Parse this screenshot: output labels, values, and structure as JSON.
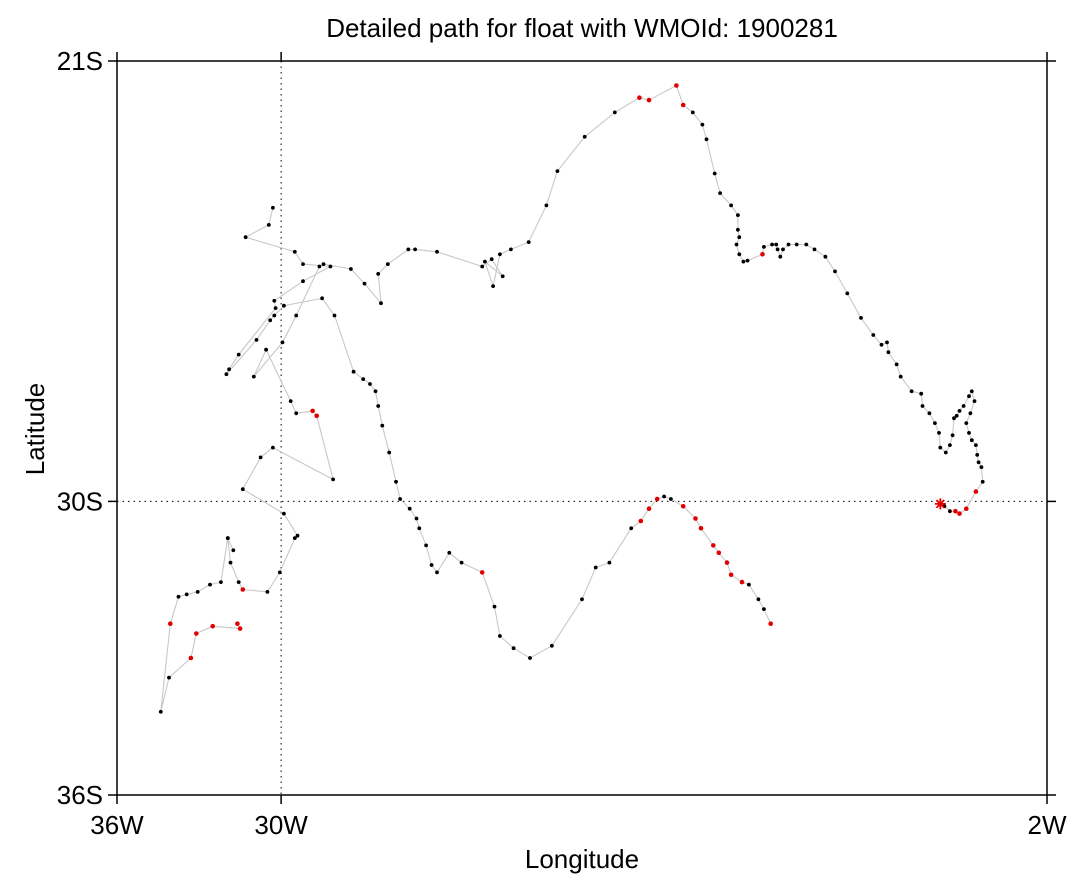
{
  "chart_data": {
    "type": "scatter",
    "title": "Detailed path for float with WMOId: 1900281",
    "xlabel": "Longitude",
    "ylabel": "Latitude",
    "xlim": [
      -36,
      -2
    ],
    "ylim": [
      -36,
      -21
    ],
    "x_ticks": [
      {
        "value": -36,
        "label": "36W"
      },
      {
        "value": -30,
        "label": "30W"
      },
      {
        "value": -2,
        "label": "2W"
      }
    ],
    "y_ticks": [
      {
        "value": -21,
        "label": "21S"
      },
      {
        "value": -30,
        "label": "30S"
      },
      {
        "value": -36,
        "label": "36S"
      }
    ],
    "grid": "dotted lines at 30W and 30S",
    "colors": {
      "path": "#c8c8c8",
      "normal": "#000000",
      "flagged": "#e00000",
      "frame": "#000000"
    },
    "start_marker": {
      "shape": "asterisk",
      "lon": -5.9,
      "lat": -30.05,
      "color": "#e00000"
    },
    "series": [
      {
        "points": [
          [
            -5.9,
            -30.05,
            0
          ],
          [
            -5.75,
            -30.1,
            0
          ],
          [
            -5.55,
            -30.2,
            0
          ],
          [
            -5.35,
            -30.2,
            1
          ],
          [
            -5.2,
            -30.25,
            1
          ],
          [
            -4.95,
            -30.15,
            1
          ],
          [
            -4.6,
            -29.8,
            1
          ],
          [
            -4.35,
            -29.6,
            0
          ],
          [
            -4.4,
            -29.3,
            0
          ],
          [
            -4.5,
            -29.2,
            0
          ],
          [
            -4.55,
            -29.05,
            0
          ],
          [
            -4.6,
            -28.85,
            0
          ],
          [
            -4.75,
            -28.75,
            0
          ],
          [
            -4.85,
            -28.6,
            0
          ],
          [
            -4.95,
            -28.4,
            0
          ],
          [
            -4.8,
            -28.2,
            0
          ],
          [
            -4.65,
            -27.95,
            0
          ],
          [
            -4.75,
            -27.75,
            0
          ],
          [
            -4.85,
            -27.85,
            0
          ],
          [
            -5.05,
            -28.05,
            0
          ],
          [
            -5.2,
            -28.15,
            0
          ],
          [
            -5.3,
            -28.25,
            0
          ],
          [
            -5.4,
            -28.3,
            0
          ],
          [
            -5.45,
            -28.65,
            0
          ],
          [
            -5.55,
            -28.85,
            0
          ],
          [
            -5.7,
            -29.0,
            0
          ],
          [
            -5.9,
            -28.9,
            0
          ],
          [
            -5.95,
            -28.6,
            0
          ],
          [
            -6.1,
            -28.4,
            0
          ],
          [
            -6.3,
            -28.2,
            0
          ],
          [
            -6.55,
            -28.05,
            0
          ],
          [
            -6.6,
            -27.8,
            0
          ],
          [
            -6.95,
            -27.75,
            0
          ],
          [
            -7.35,
            -27.45,
            0
          ],
          [
            -7.5,
            -27.2,
            0
          ],
          [
            -7.8,
            -26.95,
            0
          ],
          [
            -7.85,
            -26.75,
            0
          ],
          [
            -8.05,
            -26.8,
            0
          ],
          [
            -8.35,
            -26.6,
            0
          ],
          [
            -8.8,
            -26.25,
            0
          ],
          [
            -9.3,
            -25.75,
            0
          ],
          [
            -9.75,
            -25.3,
            0
          ],
          [
            -10.1,
            -25.0,
            0
          ],
          [
            -10.5,
            -24.85,
            0
          ],
          [
            -10.8,
            -24.75,
            0
          ],
          [
            -11.15,
            -24.75,
            0
          ],
          [
            -11.45,
            -24.75,
            0
          ],
          [
            -11.65,
            -24.85,
            0
          ],
          [
            -11.75,
            -25.0,
            0
          ],
          [
            -11.85,
            -24.85,
            0
          ],
          [
            -11.9,
            -24.75,
            0
          ],
          [
            -12.05,
            -24.75,
            0
          ],
          [
            -12.35,
            -24.8,
            0
          ],
          [
            -12.4,
            -24.95,
            1
          ],
          [
            -12.95,
            -25.08,
            0
          ],
          [
            -13.1,
            -25.1,
            0
          ],
          [
            -13.25,
            -24.95,
            0
          ],
          [
            -13.35,
            -24.75,
            0
          ],
          [
            -13.25,
            -24.6,
            0
          ],
          [
            -13.3,
            -24.45,
            0
          ],
          [
            -13.3,
            -24.15,
            0
          ],
          [
            -13.55,
            -23.95,
            0
          ],
          [
            -13.95,
            -23.7,
            0
          ],
          [
            -14.15,
            -23.3,
            0
          ],
          [
            -14.45,
            -22.6,
            0
          ],
          [
            -14.6,
            -22.3,
            0
          ],
          [
            -14.95,
            -22.05,
            0
          ],
          [
            -15.3,
            -21.9,
            1
          ],
          [
            -15.55,
            -21.5,
            1
          ],
          [
            -16.55,
            -21.8,
            1
          ],
          [
            -16.9,
            -21.75,
            1
          ],
          [
            -17.8,
            -22.05,
            0
          ],
          [
            -18.9,
            -22.55,
            0
          ],
          [
            -19.9,
            -23.25,
            0
          ],
          [
            -20.3,
            -23.95,
            0
          ],
          [
            -20.95,
            -24.7,
            0
          ],
          [
            -21.6,
            -24.85,
            0
          ],
          [
            -22.0,
            -24.95,
            0
          ],
          [
            -22.25,
            -25.6,
            0
          ],
          [
            -22.55,
            -25.1,
            0
          ],
          [
            -21.9,
            -25.4,
            0
          ],
          [
            -22.3,
            -25.05,
            0
          ],
          [
            -22.65,
            -25.2,
            0
          ],
          [
            -24.3,
            -24.9,
            0
          ],
          [
            -25.1,
            -24.85,
            0
          ],
          [
            -25.35,
            -24.85,
            0
          ],
          [
            -26.1,
            -25.15,
            0
          ],
          [
            -26.45,
            -25.35,
            0
          ],
          [
            -26.35,
            -25.95,
            0
          ],
          [
            -26.95,
            -25.55,
            0
          ],
          [
            -27.45,
            -25.25,
            0
          ],
          [
            -28.45,
            -25.15,
            0
          ],
          [
            -28.6,
            -25.2,
            0
          ],
          [
            -29.45,
            -26.2,
            0
          ],
          [
            -29.95,
            -26.75,
            0
          ],
          [
            -31.0,
            -27.45,
            0
          ],
          [
            -30.55,
            -26.9,
            0
          ],
          [
            -29.65,
            -27.95,
            0
          ],
          [
            -29.45,
            -28.2,
            0
          ],
          [
            -28.85,
            -28.15,
            1
          ],
          [
            -28.7,
            -28.25,
            1
          ],
          [
            -28.1,
            -29.55,
            0
          ],
          [
            -30.3,
            -28.9,
            0
          ],
          [
            -30.75,
            -29.1,
            0
          ],
          [
            -31.4,
            -29.75,
            0
          ],
          [
            -29.9,
            -30.25,
            0
          ],
          [
            -29.4,
            -30.7,
            0
          ],
          [
            -29.5,
            -30.75,
            0
          ],
          [
            -30.05,
            -31.45,
            0
          ],
          [
            -30.5,
            -31.85,
            0
          ],
          [
            -31.4,
            -31.8,
            1
          ],
          [
            -31.55,
            -31.65,
            0
          ],
          [
            -31.85,
            -31.25,
            0
          ],
          [
            -31.95,
            -30.75,
            0
          ],
          [
            -31.75,
            -31.0,
            0
          ],
          [
            -31.95,
            -30.75,
            0
          ],
          [
            -32.2,
            -31.65,
            0
          ],
          [
            -32.6,
            -31.7,
            0
          ],
          [
            -33.05,
            -31.85,
            0
          ],
          [
            -33.45,
            -31.9,
            0
          ],
          [
            -33.75,
            -31.95,
            0
          ],
          [
            -34.05,
            -32.5,
            1
          ],
          [
            -34.4,
            -34.3,
            0
          ],
          [
            -34.1,
            -33.6,
            0
          ],
          [
            -33.3,
            -33.2,
            1
          ],
          [
            -33.1,
            -32.7,
            1
          ],
          [
            -32.5,
            -32.55,
            1
          ],
          [
            -31.5,
            -32.6,
            1
          ],
          [
            -31.6,
            -32.5,
            1
          ]
        ]
      },
      {
        "points": [
          [
            -30.3,
            -24.0,
            0
          ],
          [
            -30.45,
            -24.35,
            0
          ],
          [
            -31.3,
            -24.6,
            0
          ],
          [
            -29.5,
            -24.9,
            0
          ],
          [
            -29.2,
            -25.15,
            0
          ],
          [
            -28.2,
            -25.2,
            0
          ],
          [
            -29.2,
            -25.5,
            0
          ],
          [
            -30.25,
            -25.9,
            0
          ],
          [
            -30.2,
            -26.05,
            0
          ],
          [
            -31.55,
            -27.0,
            0
          ],
          [
            -31.9,
            -27.3,
            0
          ],
          [
            -32.0,
            -27.4,
            0
          ],
          [
            -30.9,
            -26.7,
            0
          ],
          [
            -30.4,
            -26.3,
            0
          ],
          [
            -30.25,
            -26.2,
            0
          ],
          [
            -29.9,
            -26.0,
            0
          ],
          [
            -28.5,
            -25.85,
            0
          ],
          [
            -28.05,
            -26.2,
            0
          ],
          [
            -27.35,
            -27.35,
            0
          ],
          [
            -27.0,
            -27.5,
            0
          ],
          [
            -26.75,
            -27.6,
            0
          ],
          [
            -26.55,
            -27.75,
            0
          ],
          [
            -26.45,
            -28.05,
            0
          ],
          [
            -26.3,
            -28.45,
            0
          ],
          [
            -26.05,
            -29.0,
            0
          ],
          [
            -25.8,
            -29.6,
            0
          ],
          [
            -25.65,
            -29.95,
            0
          ],
          [
            -25.3,
            -30.15,
            0
          ],
          [
            -25.05,
            -30.35,
            0
          ],
          [
            -24.95,
            -30.55,
            0
          ],
          [
            -24.7,
            -30.9,
            0
          ],
          [
            -24.5,
            -31.3,
            0
          ],
          [
            -24.3,
            -31.45,
            0
          ],
          [
            -23.85,
            -31.05,
            0
          ],
          [
            -23.4,
            -31.25,
            0
          ],
          [
            -22.65,
            -31.45,
            1
          ],
          [
            -22.2,
            -32.15,
            0
          ],
          [
            -22.0,
            -32.75,
            0
          ],
          [
            -21.5,
            -33.0,
            0
          ],
          [
            -20.9,
            -33.2,
            0
          ],
          [
            -20.1,
            -32.95,
            0
          ],
          [
            -19.0,
            -32.0,
            0
          ],
          [
            -18.5,
            -31.35,
            0
          ],
          [
            -18.0,
            -31.25,
            0
          ],
          [
            -17.2,
            -30.55,
            0
          ],
          [
            -16.85,
            -30.4,
            1
          ],
          [
            -16.55,
            -30.15,
            1
          ],
          [
            -16.25,
            -29.95,
            1
          ],
          [
            -16.0,
            -29.9,
            0
          ],
          [
            -15.75,
            -29.95,
            0
          ],
          [
            -15.3,
            -30.1,
            1
          ],
          [
            -14.85,
            -30.35,
            1
          ],
          [
            -14.65,
            -30.55,
            1
          ],
          [
            -14.2,
            -30.9,
            1
          ],
          [
            -14.0,
            -31.05,
            1
          ],
          [
            -13.7,
            -31.25,
            1
          ],
          [
            -13.55,
            -31.5,
            1
          ],
          [
            -13.15,
            -31.65,
            1
          ],
          [
            -12.9,
            -31.7,
            0
          ],
          [
            -12.55,
            -32.0,
            0
          ],
          [
            -12.35,
            -32.2,
            0
          ],
          [
            -12.1,
            -32.5,
            1
          ]
        ]
      }
    ]
  }
}
